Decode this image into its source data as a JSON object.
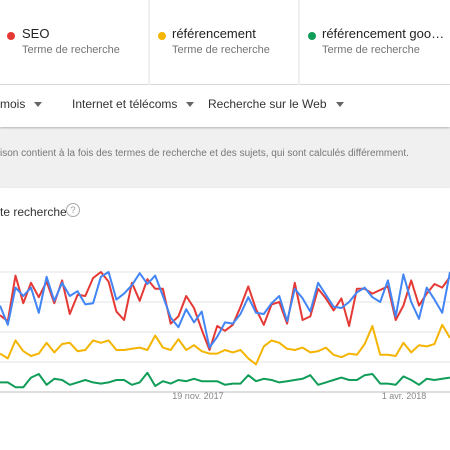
{
  "terms": [
    {
      "name": "SEO",
      "sub": "Terme de recherche",
      "color": "#e53935"
    },
    {
      "name": "référencement",
      "sub": "Terme de recherche",
      "color": "#f4b400"
    },
    {
      "name": "référencement goo…",
      "sub": "Terme de recherche",
      "color": "#0f9d58"
    }
  ],
  "filters": {
    "period": "mois",
    "category": "Internet et télécoms",
    "type": "Recherche sur le Web"
  },
  "notice": "ison contient à la fois des termes de recherche et des sujets, qui sont calculés différemment.",
  "card": {
    "title": "te recherche",
    "help_glyph": "?"
  },
  "colors": {
    "blue": "#4285f4"
  },
  "chart_data": {
    "type": "line",
    "x_tick_labels": [
      "19 nov. 2017",
      "1 avr. 2018"
    ],
    "ylim": [
      0,
      100
    ],
    "grid": true,
    "series": [
      {
        "color": "#e53935",
        "values": [
          64,
          59,
          97,
          74,
          91,
          79,
          92,
          74,
          93,
          65,
          81,
          80,
          95,
          100,
          92,
          67,
          60,
          91,
          76,
          94,
          86,
          86,
          57,
          63,
          80,
          70,
          52,
          35,
          55,
          51,
          56,
          71,
          88,
          69,
          56,
          73,
          75,
          57,
          91,
          60,
          63,
          86,
          78,
          68,
          78,
          55,
          86,
          86,
          82,
          85,
          88,
          60,
          72,
          93,
          72,
          82,
          90,
          87,
          96
        ]
      },
      {
        "color": "#4285f4",
        "values": [
          72,
          56,
          87,
          80,
          87,
          66,
          96,
          76,
          91,
          80,
          84,
          73,
          74,
          96,
          100,
          77,
          82,
          89,
          99,
          90,
          97,
          80,
          62,
          54,
          69,
          58,
          67,
          37,
          46,
          58,
          57,
          65,
          79,
          66,
          65,
          74,
          80,
          59,
          86,
          78,
          67,
          91,
          81,
          71,
          70,
          75,
          83,
          87,
          79,
          75,
          93,
          63,
          98,
          75,
          61,
          87,
          77,
          66,
          100
        ]
      },
      {
        "color": "#f4b400",
        "values": [
          32,
          28,
          43,
          34,
          30,
          32,
          41,
          33,
          40,
          41,
          34,
          35,
          43,
          41,
          43,
          35,
          35,
          36,
          37,
          35,
          47,
          37,
          35,
          44,
          35,
          39,
          34,
          32,
          32,
          35,
          33,
          35,
          28,
          23,
          38,
          43,
          41,
          36,
          35,
          37,
          33,
          34,
          37,
          31,
          29,
          32,
          31,
          40,
          55,
          31,
          31,
          30,
          41,
          33,
          39,
          38,
          40,
          56,
          45
        ]
      },
      {
        "color": "#0f9d58",
        "values": [
          8,
          8,
          4,
          4,
          12,
          15,
          6,
          11,
          10,
          6,
          8,
          10,
          8,
          7,
          8,
          10,
          10,
          6,
          8,
          16,
          5,
          9,
          7,
          10,
          9,
          11,
          9,
          9,
          9,
          6,
          7,
          7,
          14,
          9,
          11,
          10,
          8,
          9,
          10,
          11,
          14,
          6,
          8,
          10,
          12,
          10,
          10,
          14,
          15,
          7,
          7,
          6,
          13,
          10,
          6,
          11,
          10,
          11,
          12
        ]
      }
    ]
  }
}
